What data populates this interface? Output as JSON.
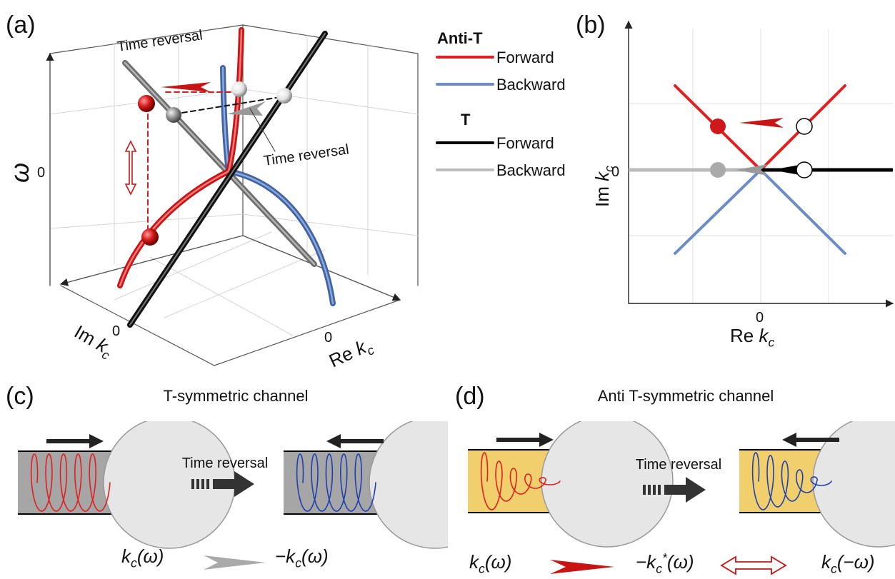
{
  "panel_a": {
    "label": "(a)",
    "time_reversal_top": "Time reversal",
    "time_reversal_mid": "Time reversal",
    "omega_axis": "ω",
    "omega_zero": "0",
    "im_axis": [
      "Im ",
      "k",
      "c"
    ],
    "im_zero": "0",
    "re_axis": [
      "Re ",
      "k",
      "c"
    ],
    "re_zero": "0"
  },
  "legend": {
    "anti_t_title": "Anti-T",
    "anti_t_forward": "Forward",
    "anti_t_backward": "Backward",
    "t_title": "T",
    "t_forward": "Forward",
    "t_backward": "Backward"
  },
  "panel_b": {
    "label": "(b)",
    "y_axis": [
      "Im ",
      "k",
      "c"
    ],
    "y_zero": "0",
    "x_axis": [
      "Re ",
      "k",
      "c"
    ],
    "x_zero": "0"
  },
  "panel_c": {
    "label": "(c)",
    "title": "T-symmetric channel",
    "time_reversal": "Time reversal",
    "formula_left": [
      "k",
      "c",
      "(ω)"
    ],
    "formula_right": [
      "−k",
      "c",
      "(ω)"
    ]
  },
  "panel_d": {
    "label": "(d)",
    "title": "Anti T-symmetric channel",
    "time_reversal": "Time reversal",
    "formula_left": [
      "k",
      "c",
      "(ω)"
    ],
    "formula_mid": [
      "−k",
      "c",
      "*",
      "(ω)"
    ],
    "formula_right": [
      "k",
      "c",
      "(−ω)"
    ]
  }
}
